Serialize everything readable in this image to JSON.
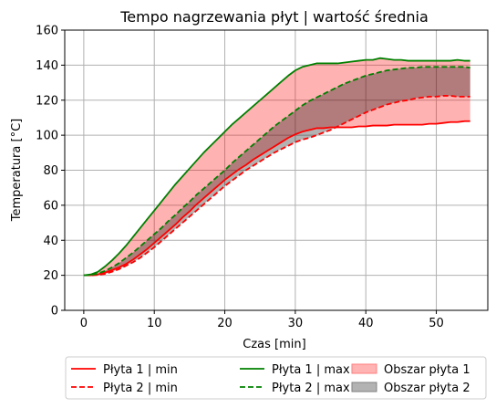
{
  "chart_data": {
    "type": "line",
    "title": "Tempo nagrzewania płyt | wartość średnia",
    "xlabel": "Czas [min]",
    "ylabel": "Temperatura [°C]",
    "xlim": [
      -2.7,
      57.3
    ],
    "ylim": [
      0,
      160
    ],
    "xticks": [
      0,
      10,
      20,
      30,
      40,
      50
    ],
    "yticks": [
      0,
      20,
      40,
      60,
      80,
      100,
      120,
      140,
      160
    ],
    "grid": true,
    "legend_position": "bottom",
    "x": [
      0,
      1,
      2,
      3,
      4,
      5,
      6,
      7,
      8,
      9,
      10,
      11,
      12,
      13,
      14,
      15,
      16,
      17,
      18,
      19,
      20,
      21,
      22,
      23,
      24,
      25,
      26,
      27,
      28,
      29,
      30,
      31,
      32,
      33,
      34,
      35,
      36,
      37,
      38,
      39,
      40,
      41,
      42,
      43,
      44,
      45,
      46,
      47,
      48,
      49,
      50,
      51,
      52,
      53,
      54,
      54.8
    ],
    "series": [
      {
        "name": "Płyta 1 | min",
        "color": "#ff0000",
        "dash": false,
        "values": [
          20,
          20,
          20.5,
          21.5,
          23,
          24.5,
          26.5,
          29,
          32,
          35,
          38.5,
          42,
          45.5,
          49,
          53,
          56.5,
          60.5,
          64,
          67.5,
          71,
          74.5,
          77.5,
          80.5,
          83,
          86,
          88.5,
          91,
          93.5,
          96,
          98.5,
          100.5,
          102,
          103,
          104,
          104,
          104.5,
          104.5,
          104.5,
          104.5,
          105,
          105,
          105.5,
          105.5,
          105.5,
          106,
          106,
          106,
          106,
          106,
          106.5,
          106.5,
          107,
          107.5,
          107.5,
          108,
          108
        ]
      },
      {
        "name": "Płyta 2 | min",
        "color": "#ff0000",
        "dash": true,
        "values": [
          20,
          20,
          20.2,
          20.8,
          22,
          23.5,
          25.5,
          27.5,
          30,
          33,
          36,
          39.5,
          43,
          46.5,
          50,
          53.5,
          57,
          60.5,
          64,
          67.5,
          71,
          74,
          77,
          80,
          82.5,
          85,
          87.5,
          90,
          92,
          94,
          96,
          97.5,
          98.5,
          100,
          101.5,
          103,
          105,
          107,
          109,
          111,
          113,
          114.5,
          116,
          117.5,
          118.5,
          119.5,
          120,
          121,
          121.5,
          122,
          122,
          122.5,
          122.5,
          122,
          122,
          122
        ]
      },
      {
        "name": "Płyta 1 | max",
        "color": "#008000",
        "dash": false,
        "values": [
          20,
          20.5,
          22,
          25,
          28.5,
          32.5,
          37,
          42,
          47,
          52,
          57,
          62,
          67,
          72,
          76.5,
          81,
          85.5,
          90,
          94,
          98,
          102,
          106,
          109.5,
          113,
          116.5,
          120,
          123.5,
          127,
          130.5,
          134,
          137,
          139,
          140,
          141,
          141,
          141,
          141,
          141.5,
          142,
          142.5,
          143,
          143,
          144,
          143.5,
          143,
          143,
          142.5,
          142.5,
          142.5,
          142.5,
          142.5,
          142.5,
          142.5,
          143,
          142.5,
          142.5
        ]
      },
      {
        "name": "Płyta 2 | max",
        "color": "#008000",
        "dash": true,
        "values": [
          20,
          20.2,
          21,
          22.5,
          24.5,
          27,
          30,
          33,
          36.5,
          40,
          43.5,
          47,
          51,
          54.5,
          58.5,
          62,
          66,
          69.5,
          73,
          76.5,
          80,
          84,
          87.5,
          91,
          94.5,
          98,
          101.5,
          105,
          108,
          111,
          114,
          117,
          119.5,
          121.5,
          123.5,
          125.5,
          127.5,
          129.5,
          131,
          132.5,
          134,
          135,
          136,
          137,
          137.5,
          138,
          138.5,
          138.5,
          139,
          139,
          139,
          139,
          139,
          139,
          139,
          138.5
        ]
      }
    ],
    "legend": [
      {
        "label": "Płyta 1 | min",
        "kind": "line",
        "color": "#ff0000",
        "dash": false
      },
      {
        "label": "Płyta 2 | min",
        "kind": "line",
        "color": "#ff0000",
        "dash": true
      },
      {
        "label": "Płyta 1 | max",
        "kind": "line",
        "color": "#008000",
        "dash": false
      },
      {
        "label": "Płyta 2 | max",
        "kind": "line",
        "color": "#008000",
        "dash": true
      },
      {
        "label": "Obszar płyta 1",
        "kind": "area",
        "color": "#ffb3b3",
        "edge": "#ff7f7f"
      },
      {
        "label": "Obszar płyta 2",
        "kind": "area",
        "color": "#b3b3b3",
        "edge": "#808080"
      }
    ],
    "areas": [
      {
        "name": "Obszar płyta 1",
        "lower": "Płyta 1 | min",
        "upper": "Płyta 1 | max",
        "color": "#ff0000",
        "opacity": 0.3
      },
      {
        "name": "Obszar płyta 2",
        "lower": "Płyta 2 | min",
        "upper": "Płyta 2 | max",
        "color": "#000000",
        "opacity": 0.3
      }
    ]
  }
}
